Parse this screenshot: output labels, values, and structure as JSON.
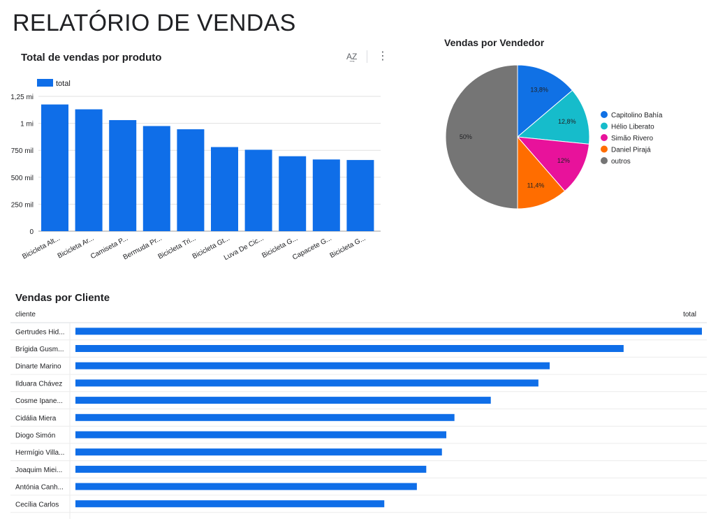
{
  "page": {
    "title": "RELATÓRIO DE VENDAS"
  },
  "product_chart": {
    "title": "Total de vendas por produto",
    "legend_label": "total",
    "sort_icon_text": "A͢Z",
    "more_icon_text": "⋮"
  },
  "seller_chart": {
    "title": "Vendas por Vendedor"
  },
  "client_table": {
    "title": "Vendas por Cliente",
    "col_client": "cliente",
    "col_total": "total"
  },
  "colors": {
    "bar": "#0f6ee8",
    "grid": "#e0e0e0",
    "pie": [
      "#1071e5",
      "#16bccb",
      "#e8129b",
      "#ff6d00",
      "#757575"
    ]
  },
  "chart_data": [
    {
      "type": "bar",
      "title": "Total de vendas por produto",
      "series": [
        {
          "name": "total",
          "values": [
            1175000,
            1130000,
            1030000,
            975000,
            945000,
            780000,
            755000,
            695000,
            665000,
            660000
          ]
        }
      ],
      "categories": [
        "Bicicleta Alt...",
        "Bicicleta Ar...",
        "Camiseta P...",
        "Bermuda Pr...",
        "Bicicleta Tri...",
        "Bicicleta Gt...",
        "Luva De Cic...",
        "Bicicleta G...",
        "Capacete G...",
        "Bicicleta G..."
      ],
      "yticks": [
        0,
        250000,
        500000,
        750000,
        1000000,
        1250000
      ],
      "ytick_labels": [
        "0",
        "250 mil",
        "500 mil",
        "750 mil",
        "1 mi",
        "1,25 mi"
      ],
      "ylim": [
        0,
        1250000
      ],
      "legend": "top-left",
      "grid": true
    },
    {
      "type": "pie",
      "title": "Vendas por Vendedor",
      "labels": [
        "Capitolino Bahía",
        "Hélio Liberato",
        "Simão Rivero",
        "Daniel Pirajá",
        "outros"
      ],
      "values": [
        13.8,
        12.8,
        12,
        11.4,
        50
      ],
      "value_labels": [
        "13,8%",
        "12,8%",
        "12%",
        "11,4%",
        "50%"
      ],
      "legend": "right"
    },
    {
      "type": "bar",
      "orientation": "horizontal",
      "title": "Vendas por Cliente",
      "categories": [
        "Gertrudes Hid...",
        "Brígida Gusm...",
        "Dinarte Marino",
        "Ilduara Chávez",
        "Cosme Ipane...",
        "Cidália Miera",
        "Diogo Simón",
        "Hermígio Villa...",
        "Joaquim Miei...",
        "Antónia Canh...",
        "Cecília Carlos"
      ],
      "values": [
        1,
        0.875,
        0.757,
        0.739,
        0.663,
        0.605,
        0.592,
        0.585,
        0.56,
        0.545,
        0.493
      ],
      "value_unit": "fraction of max total"
    }
  ]
}
